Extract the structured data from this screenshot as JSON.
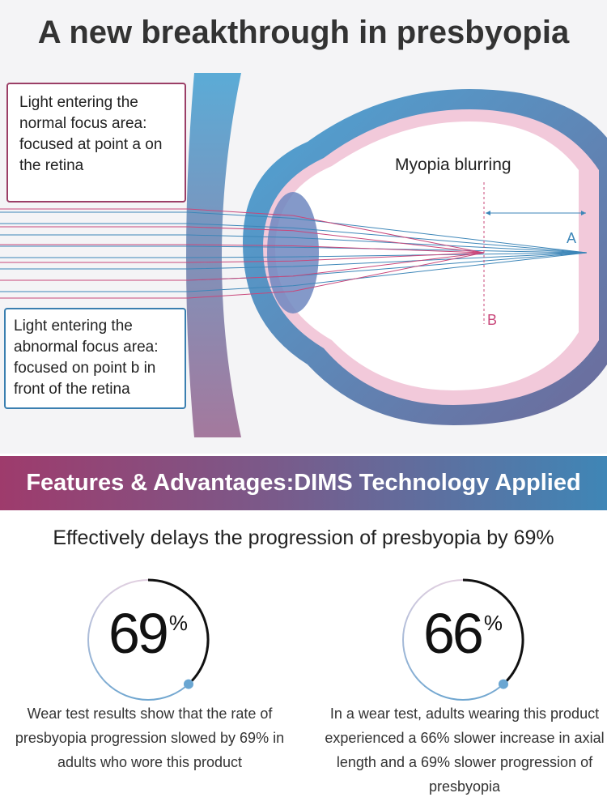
{
  "title": "A new breakthrough in presbyopia",
  "diagram": {
    "normal_box": "Light entering the normal focus area: focused at point a on the retina",
    "abnormal_box": "Light entering the abnormal focus area: focused on point b in front of the retina",
    "blur_label": "Myopia blurring",
    "point_a": "A",
    "point_b": "B",
    "colors": {
      "normal": "#c9477a",
      "abnormal": "#3d86b8"
    }
  },
  "banner": "Features & Advantages:DIMS Technology Applied",
  "headline": "Effectively delays the progression of presbyopia by 69%",
  "stats": [
    {
      "value": "69",
      "unit": "%",
      "description": "Wear test results show that the rate of presbyopia progression slowed by 69% in adults who wore this product"
    },
    {
      "value": "66",
      "unit": "%",
      "description": "In a wear test, adults wearing this product experienced a 66% slower increase in axial length and a 69% slower progression of presbyopia"
    }
  ]
}
